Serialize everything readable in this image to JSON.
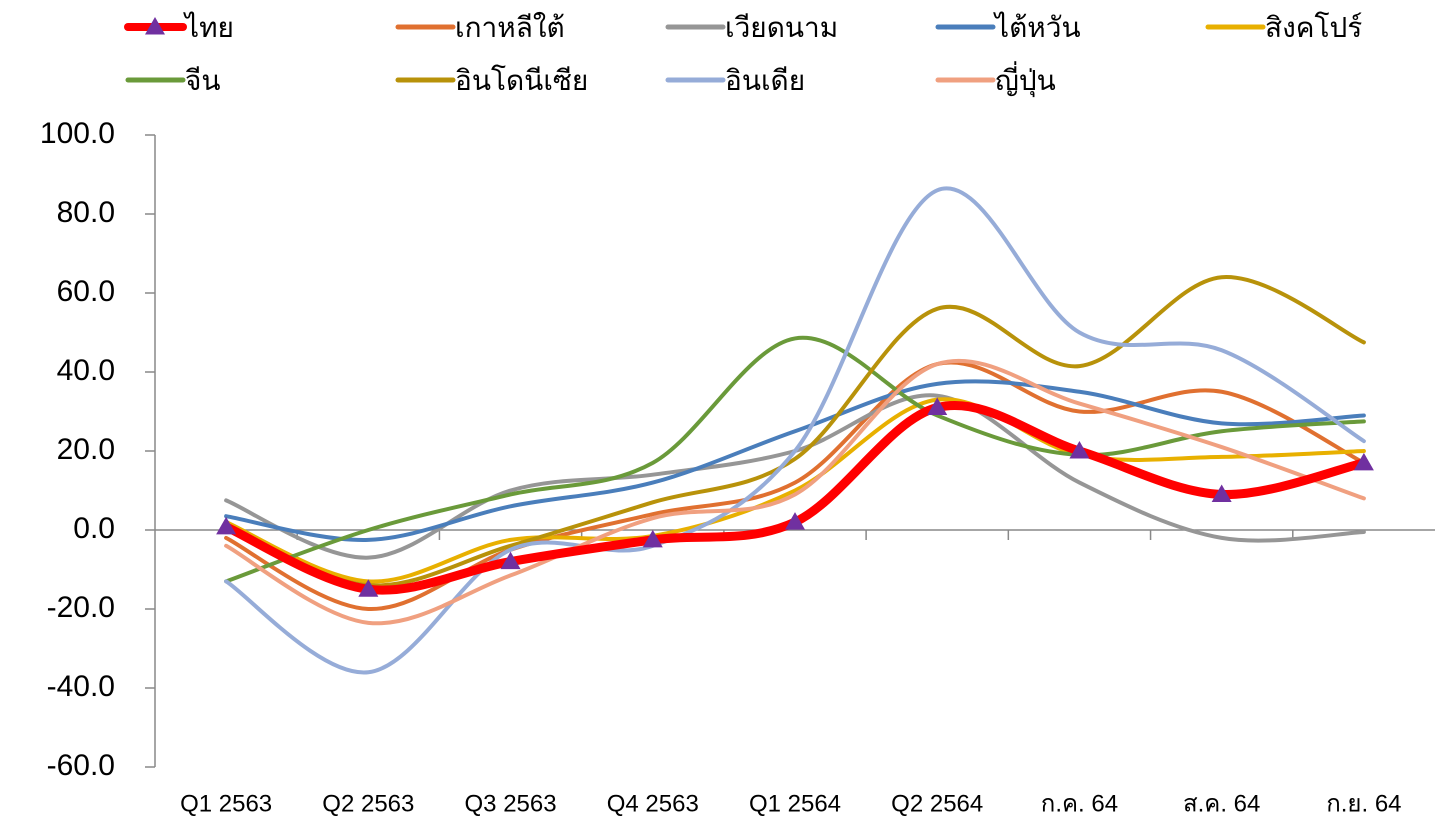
{
  "chart_data": {
    "type": "line",
    "categories": [
      "Q1 2563",
      "Q2 2563",
      "Q3 2563",
      "Q4 2563",
      "Q1 2564",
      "Q2 2564",
      "ก.ค. 64",
      "ส.ค. 64",
      "ก.ย. 64"
    ],
    "series": [
      {
        "name": "ไทย",
        "color": "#ff0000",
        "marker": "triangle",
        "marker_color": "#7030a0",
        "values": [
          0.8,
          -15,
          -8,
          -2.5,
          2,
          31,
          20,
          9,
          17
        ]
      },
      {
        "name": "เกาหลีใต้",
        "color": "#e07030",
        "values": [
          -2,
          -20,
          -5,
          4,
          12,
          42,
          30,
          35,
          17
        ]
      },
      {
        "name": "เวียดนาม",
        "color": "#969696",
        "values": [
          7.5,
          -7,
          10,
          14,
          20,
          34,
          12,
          -2,
          -0.5
        ]
      },
      {
        "name": "ไต้หวัน",
        "color": "#4a7ebb",
        "values": [
          3.5,
          -2.5,
          6,
          12,
          25,
          37,
          35,
          27,
          29
        ]
      },
      {
        "name": "สิงคโปร์",
        "color": "#e8b000",
        "values": [
          2,
          -13,
          -2.5,
          -1.5,
          10,
          33,
          19,
          18.5,
          20
        ]
      },
      {
        "name": "จีน",
        "color": "#6a9a3a",
        "values": [
          -13,
          0,
          9,
          17,
          48.5,
          29,
          19,
          25,
          27.5
        ]
      },
      {
        "name": "อินโดนีเซีย",
        "color": "#b8920a",
        "values": [
          1,
          -14,
          -4,
          7,
          18,
          56,
          41.5,
          64,
          47.5
        ]
      },
      {
        "name": "อินเดีย",
        "color": "#96acd8",
        "values": [
          -13,
          -36,
          -5,
          -4,
          20,
          86,
          50,
          45.5,
          22.5
        ]
      },
      {
        "name": "ญี่ปุ่น",
        "color": "#f0a080",
        "values": [
          -4,
          -23.5,
          -11.5,
          3,
          9,
          42,
          32,
          21,
          8
        ]
      }
    ],
    "ylim": [
      -60,
      100
    ],
    "yticks": [
      {
        "value": -60,
        "label": "-60.0"
      },
      {
        "value": -40,
        "label": "-40.0"
      },
      {
        "value": -20,
        "label": "-20.0"
      },
      {
        "value": 0,
        "label": "0.0"
      },
      {
        "value": 20,
        "label": "20.0"
      },
      {
        "value": 40,
        "label": "40.0"
      },
      {
        "value": 60,
        "label": "60.0"
      },
      {
        "value": 80,
        "label": "80.0"
      },
      {
        "value": 100,
        "label": "100.0"
      }
    ],
    "smooth": true,
    "grid": false
  }
}
